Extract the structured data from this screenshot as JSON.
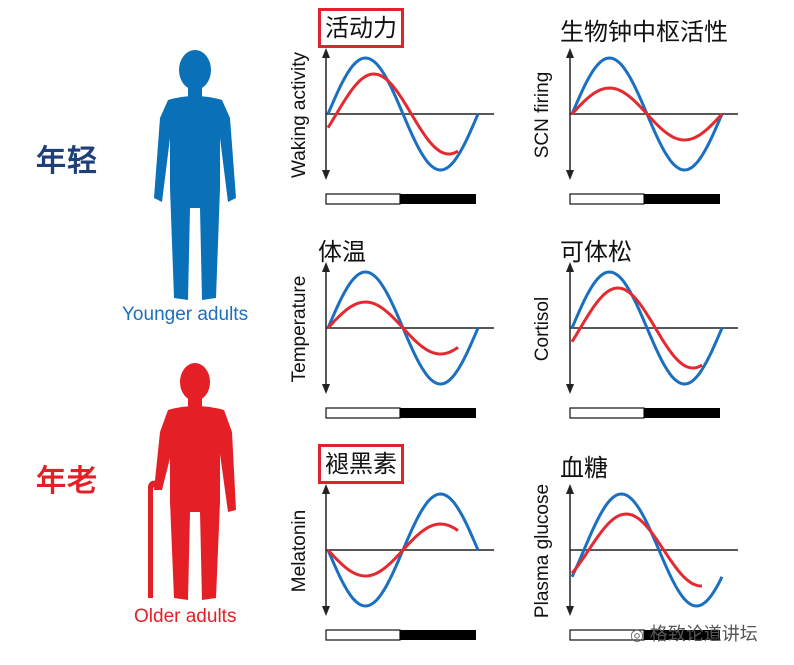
{
  "groups": {
    "young": {
      "label": "年轻",
      "caption": "Younger adults",
      "color": "#0a70b8",
      "label_color": "#1f3f7a"
    },
    "old": {
      "label": "年老",
      "caption": "Older adults",
      "color": "#e41f26",
      "label_color": "#e41f26"
    }
  },
  "panels": [
    {
      "id": "waking-activity",
      "title": "活动力",
      "ylabel": "Waking activity",
      "boxed": true
    },
    {
      "id": "scn-firing",
      "title": "生物钟中枢活性",
      "ylabel": "SCN firing",
      "boxed": false
    },
    {
      "id": "temperature",
      "title": "体温",
      "ylabel": "Temperature",
      "boxed": false
    },
    {
      "id": "cortisol",
      "title": "可体松",
      "ylabel": "Cortisol",
      "boxed": false
    },
    {
      "id": "melatonin",
      "title": "褪黑素",
      "ylabel": "Melatonin",
      "boxed": true
    },
    {
      "id": "plasma-glucose",
      "title": "血糖",
      "ylabel": "Plasma glucose",
      "boxed": false
    }
  ],
  "watermark": "格致论道讲坛",
  "colors": {
    "young_curve": "#1a6fc0",
    "old_curve": "#e42a30",
    "axis": "#222222",
    "highlight_box": "#e0232a"
  }
}
